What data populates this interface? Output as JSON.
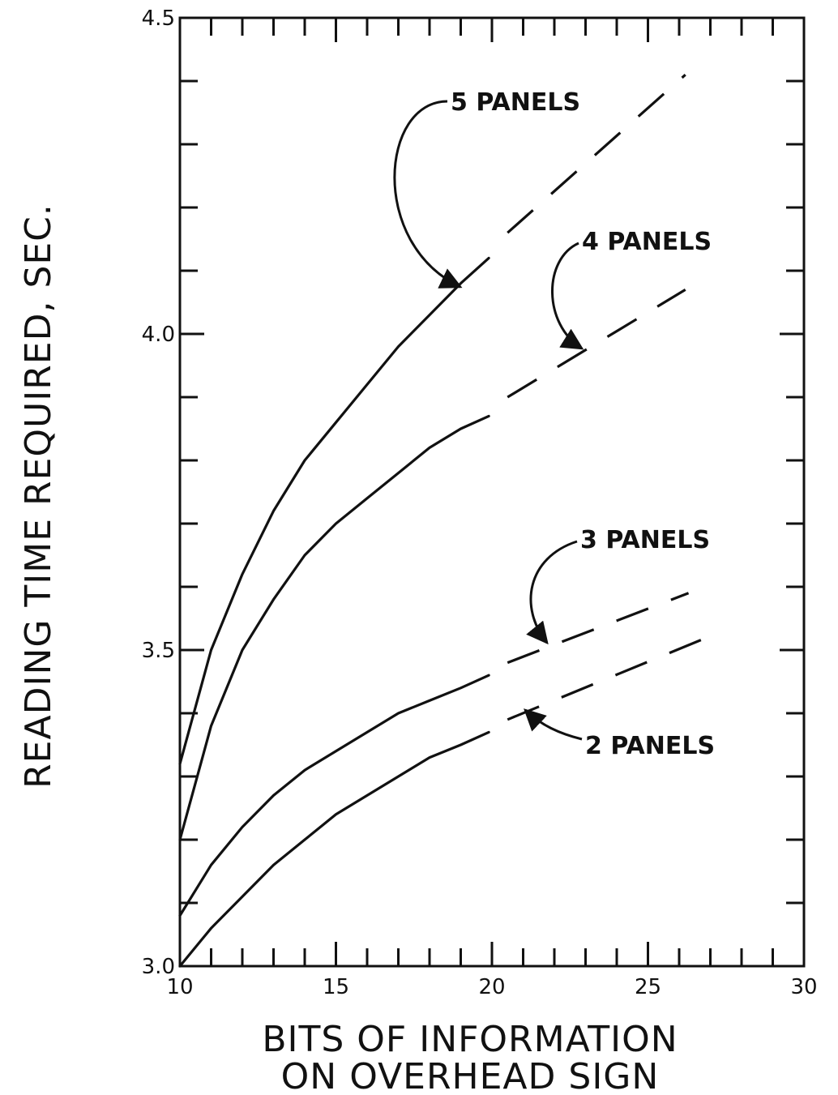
{
  "chart_data": {
    "type": "line",
    "xlabel_lines": [
      "BITS  OF  INFORMATION",
      "ON  OVERHEAD  SIGN"
    ],
    "ylabel": "READING  TIME  REQUIRED,  SEC.",
    "xlim": [
      10,
      30
    ],
    "ylim": [
      3.0,
      4.5
    ],
    "x_ticks": [
      10,
      15,
      20,
      25,
      30
    ],
    "x_tick_labels": [
      "10",
      "15",
      "20",
      "25",
      "30"
    ],
    "y_ticks": [
      3.0,
      3.5,
      4.0,
      4.5
    ],
    "y_tick_labels": [
      "3.0",
      "3.5",
      "4.0",
      "4.5"
    ],
    "x_minor_step": 1,
    "y_minor_step": 0.1,
    "grid": false,
    "series": [
      {
        "name": "5 PANELS",
        "solid": [
          [
            10,
            3.32
          ],
          [
            11,
            3.5
          ],
          [
            12,
            3.62
          ],
          [
            13,
            3.72
          ],
          [
            14,
            3.8
          ],
          [
            15,
            3.86
          ],
          [
            16,
            3.92
          ],
          [
            17,
            3.98
          ],
          [
            18,
            4.03
          ],
          [
            19,
            4.08
          ],
          [
            19.9,
            4.12
          ]
        ],
        "dashed": [
          [
            20.5,
            4.16
          ],
          [
            26.2,
            4.41
          ]
        ]
      },
      {
        "name": "4 PANELS",
        "solid": [
          [
            10,
            3.2
          ],
          [
            11,
            3.38
          ],
          [
            12,
            3.5
          ],
          [
            13,
            3.58
          ],
          [
            14,
            3.65
          ],
          [
            15,
            3.7
          ],
          [
            16,
            3.74
          ],
          [
            17,
            3.78
          ],
          [
            18,
            3.82
          ],
          [
            19,
            3.85
          ],
          [
            19.9,
            3.87
          ]
        ],
        "dashed": [
          [
            20.5,
            3.9
          ],
          [
            26.2,
            4.07
          ]
        ]
      },
      {
        "name": "3 PANELS",
        "solid": [
          [
            10,
            3.08
          ],
          [
            11,
            3.16
          ],
          [
            12,
            3.22
          ],
          [
            13,
            3.27
          ],
          [
            14,
            3.31
          ],
          [
            15,
            3.34
          ],
          [
            16,
            3.37
          ],
          [
            17,
            3.4
          ],
          [
            18,
            3.42
          ],
          [
            19,
            3.44
          ],
          [
            19.9,
            3.46
          ]
        ],
        "dashed": [
          [
            20.5,
            3.48
          ],
          [
            26.3,
            3.59
          ]
        ]
      },
      {
        "name": "2 PANELS",
        "solid": [
          [
            10,
            3.0
          ],
          [
            11,
            3.06
          ],
          [
            12,
            3.11
          ],
          [
            13,
            3.16
          ],
          [
            14,
            3.2
          ],
          [
            15,
            3.24
          ],
          [
            16,
            3.27
          ],
          [
            17,
            3.3
          ],
          [
            18,
            3.33
          ],
          [
            19,
            3.35
          ],
          [
            19.9,
            3.37
          ]
        ],
        "dashed": [
          [
            20.5,
            3.39
          ],
          [
            26.9,
            3.52
          ]
        ]
      }
    ],
    "annotations": [
      {
        "text": "5 PANELS",
        "target": [
          19.2,
          4.09
        ]
      },
      {
        "text": "4 PANELS",
        "target": [
          22.9,
          3.98
        ]
      },
      {
        "text": "3 PANELS",
        "target": [
          21.6,
          3.5
        ]
      },
      {
        "text": "2 PANELS",
        "target": [
          21.3,
          3.4
        ]
      }
    ]
  }
}
